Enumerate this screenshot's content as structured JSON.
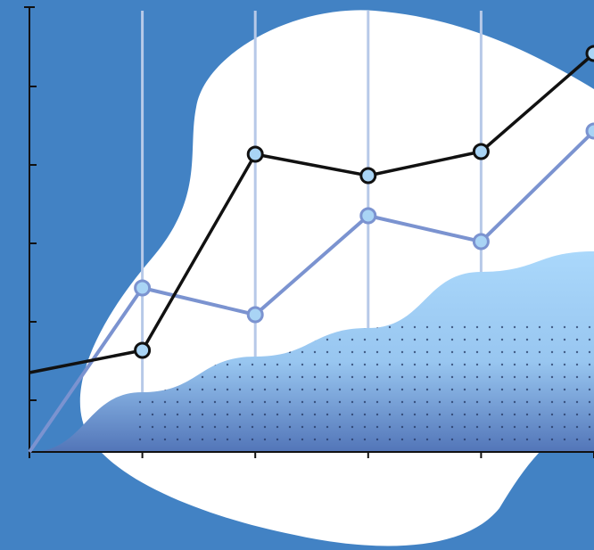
{
  "chart_data": {
    "type": "line",
    "x": [
      0,
      1,
      2,
      3,
      4,
      5
    ],
    "xlim": [
      0,
      5
    ],
    "xticks": [
      0,
      1,
      2,
      3,
      4,
      5
    ],
    "ylim": [
      0,
      499
    ],
    "yticks": [
      58,
      146,
      234,
      322,
      410
    ],
    "grid": true,
    "series": [
      {
        "color": "#aad8fb",
        "fill": true,
        "values": [
          0,
          67,
          107,
          139,
          202,
          225
        ]
      },
      {
        "color": "#7b93d0",
        "values": [
          0,
          184,
          154,
          265,
          236,
          360
        ]
      },
      {
        "color": "#111111",
        "values": [
          89,
          114,
          334,
          310,
          337,
          447
        ]
      }
    ]
  }
}
